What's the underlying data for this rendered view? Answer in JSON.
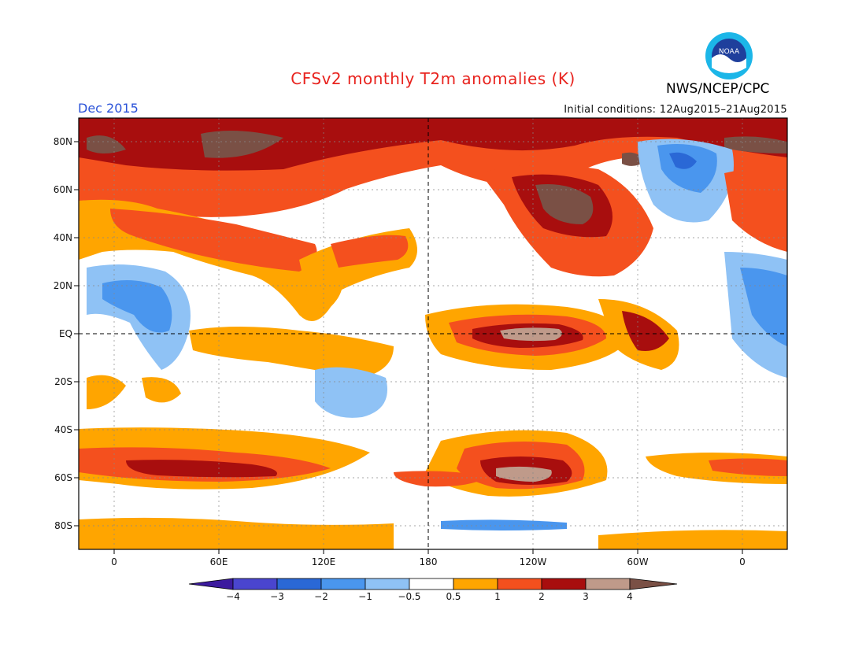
{
  "title": "CFSv2 monthly T2m anomalies (K)",
  "agency": "NWS/NCEP/CPC",
  "logo_text": "NOAA",
  "valid_month": "Dec 2015",
  "initial_conditions": "Initial conditions: 12Aug2015–21Aug2015",
  "map": {
    "lat_labels": [
      "80N",
      "60N",
      "40N",
      "20N",
      "EQ",
      "20S",
      "40S",
      "60S",
      "80S"
    ],
    "lon_labels": [
      "0",
      "60E",
      "120E",
      "180",
      "120W",
      "60W",
      "0"
    ]
  },
  "colorbar": {
    "labels": [
      "−4",
      "−3",
      "−2",
      "−1",
      "−0.5",
      "0.5",
      "1",
      "2",
      "3",
      "4"
    ],
    "colors": [
      "#3c1a9e",
      "#4a45cf",
      "#2a68d6",
      "#4a96ee",
      "#8fc2f5",
      "#ffffff",
      "#ffa500",
      "#f4501e",
      "#a80e0e",
      "#bf9a8a",
      "#7a5045"
    ]
  }
}
